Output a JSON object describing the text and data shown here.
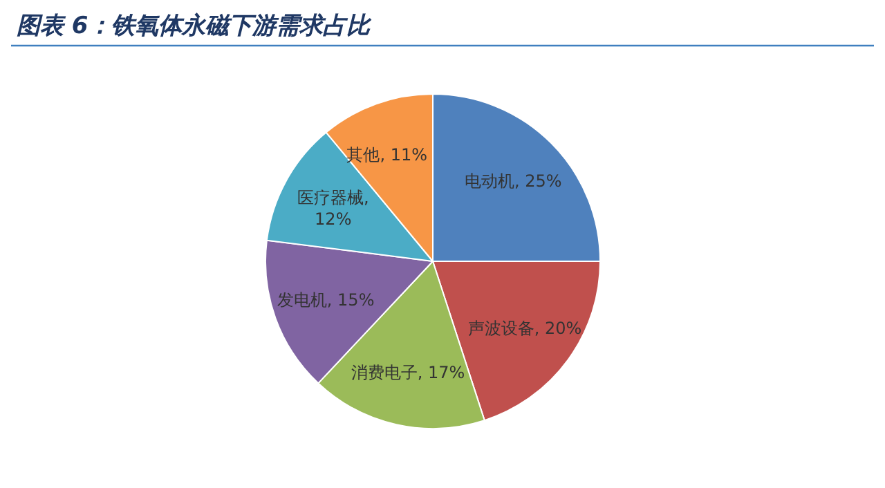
{
  "chart_data": {
    "type": "pie",
    "title": "图表 6：铁氧体永磁下游需求占比",
    "categories": [
      "电动机",
      "声波设备",
      "消费电子",
      "发电机",
      "医疗器械",
      "其他"
    ],
    "values": [
      25,
      20,
      17,
      15,
      12,
      11
    ],
    "colors": [
      "#4f81bd",
      "#c0504d",
      "#9bbb59",
      "#8064a2",
      "#4bacc6",
      "#f79646"
    ],
    "value_labels": [
      ", 25%",
      ", 20%",
      ", 17%",
      ", 15%",
      ", 12%",
      ", 11%"
    ],
    "legend": false
  }
}
